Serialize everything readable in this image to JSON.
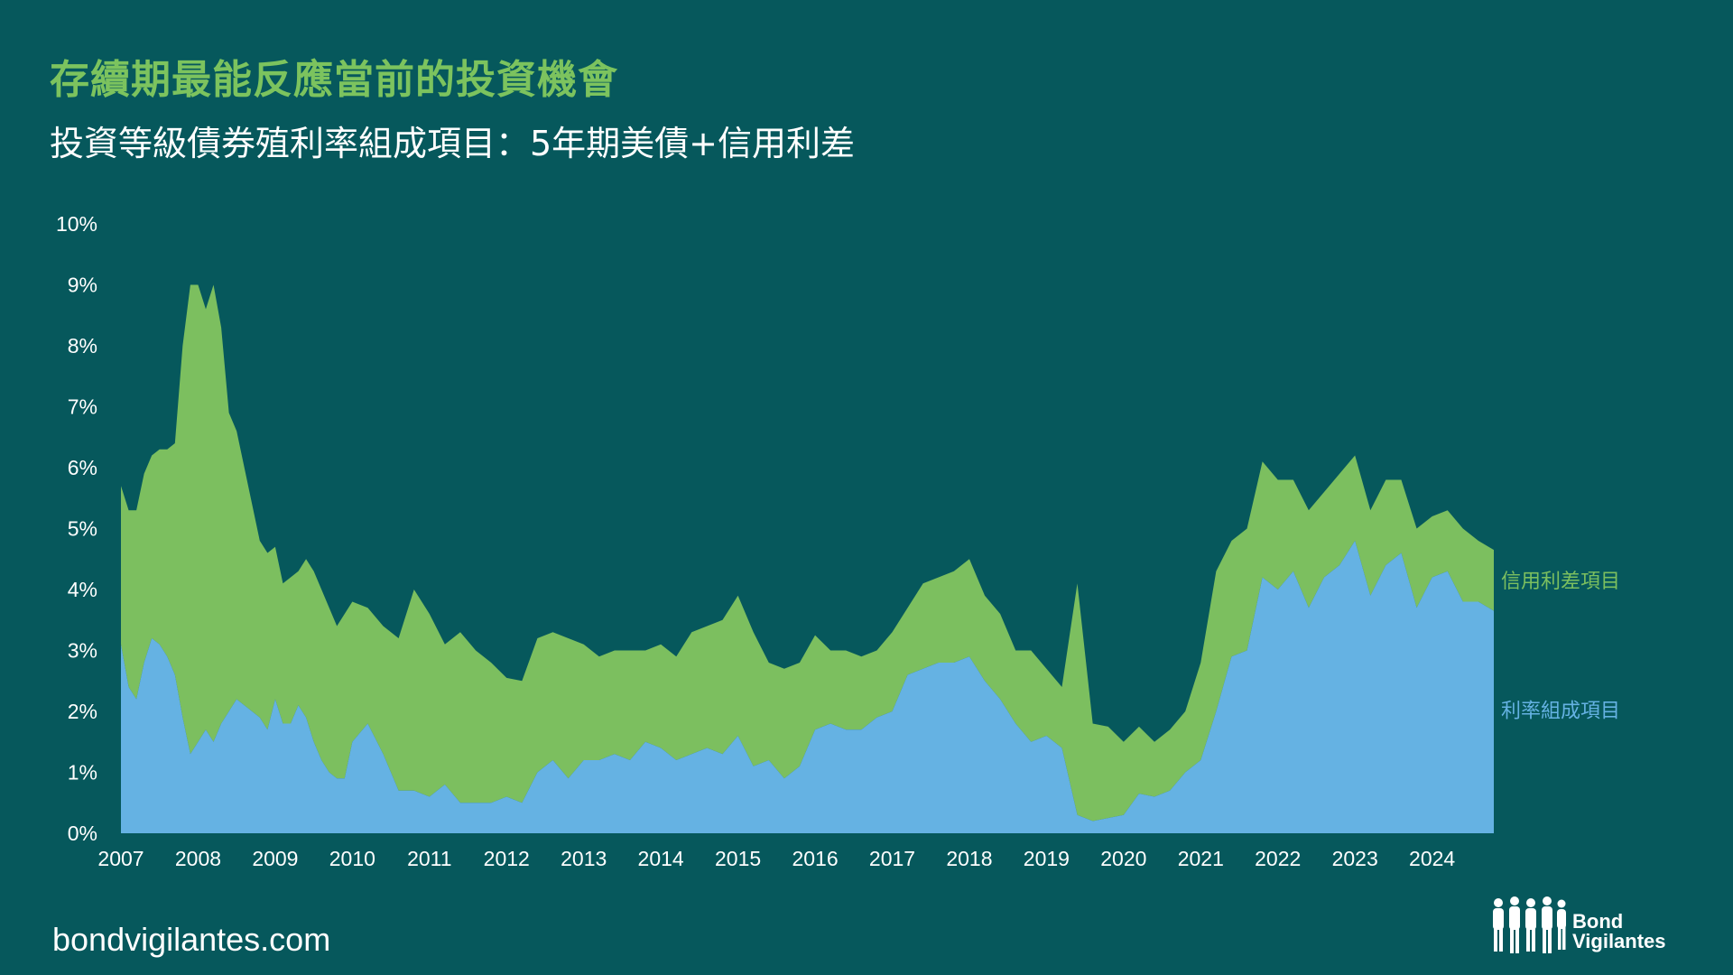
{
  "title": "存續期最能反應當前的投資機會",
  "subtitle": "投資等級債券殖利率組成項目：5年期美債+信用利差",
  "footer": "bondvigilantes.com",
  "logo": {
    "line1": "Bond",
    "line2": "Vigilantes"
  },
  "colors": {
    "background": "#06585c",
    "rate": "#65b2e3",
    "spread": "#7cbf5f",
    "title": "#7cc35e",
    "text": "#ffffff"
  },
  "chart_data": {
    "type": "area",
    "stacked": true,
    "xlabel": "",
    "ylabel": "",
    "ylim": [
      0,
      10
    ],
    "xlim": [
      2007,
      2024.8
    ],
    "y_ticks": [
      "0%",
      "1%",
      "2%",
      "3%",
      "4%",
      "5%",
      "6%",
      "7%",
      "8%",
      "9%",
      "10%"
    ],
    "x_ticks": [
      "2007",
      "2008",
      "2009",
      "2010",
      "2011",
      "2012",
      "2013",
      "2014",
      "2015",
      "2016",
      "2017",
      "2018",
      "2019",
      "2020",
      "2021",
      "2022",
      "2023",
      "2024"
    ],
    "grid": false,
    "series": [
      {
        "name": "利率組成項目",
        "color": "#65b2e3",
        "x": [
          2007.0,
          2007.1,
          2007.2,
          2007.3,
          2007.4,
          2007.5,
          2007.6,
          2007.7,
          2007.8,
          2007.9,
          2008.0,
          2008.1,
          2008.2,
          2008.3,
          2008.4,
          2008.5,
          2008.6,
          2008.7,
          2008.8,
          2008.9,
          2009.0,
          2009.1,
          2009.2,
          2009.3,
          2009.4,
          2009.5,
          2009.6,
          2009.7,
          2009.8,
          2009.9,
          2010.0,
          2010.2,
          2010.4,
          2010.6,
          2010.8,
          2011.0,
          2011.2,
          2011.4,
          2011.6,
          2011.8,
          2012.0,
          2012.2,
          2012.4,
          2012.6,
          2012.8,
          2013.0,
          2013.2,
          2013.4,
          2013.6,
          2013.8,
          2014.0,
          2014.2,
          2014.4,
          2014.6,
          2014.8,
          2015.0,
          2015.2,
          2015.4,
          2015.6,
          2015.8,
          2016.0,
          2016.2,
          2016.4,
          2016.6,
          2016.8,
          2017.0,
          2017.2,
          2017.4,
          2017.6,
          2017.8,
          2018.0,
          2018.2,
          2018.4,
          2018.6,
          2018.8,
          2019.0,
          2019.2,
          2019.4,
          2019.6,
          2019.8,
          2020.0,
          2020.2,
          2020.4,
          2020.6,
          2020.8,
          2021.0,
          2021.2,
          2021.4,
          2021.6,
          2021.8,
          2022.0,
          2022.2,
          2022.4,
          2022.6,
          2022.8,
          2023.0,
          2023.2,
          2023.4,
          2023.6,
          2023.8,
          2024.0,
          2024.2,
          2024.4,
          2024.6,
          2024.8
        ],
        "y": [
          3.1,
          2.4,
          2.2,
          2.8,
          3.2,
          3.1,
          2.9,
          2.6,
          1.9,
          1.3,
          1.5,
          1.7,
          1.5,
          1.8,
          2.0,
          2.2,
          2.1,
          2.0,
          1.9,
          1.7,
          2.2,
          1.8,
          1.8,
          2.1,
          1.9,
          1.5,
          1.2,
          1.0,
          0.9,
          0.9,
          1.5,
          1.8,
          1.3,
          0.7,
          0.7,
          0.6,
          0.8,
          0.5,
          0.5,
          0.5,
          0.6,
          0.5,
          1.0,
          1.2,
          0.9,
          1.2,
          1.2,
          1.3,
          1.2,
          1.5,
          1.4,
          1.2,
          1.3,
          1.4,
          1.3,
          1.6,
          1.1,
          1.2,
          0.9,
          1.1,
          1.7,
          1.8,
          1.7,
          1.7,
          1.9,
          2.0,
          2.6,
          2.7,
          2.8,
          2.8,
          2.9,
          2.5,
          2.2,
          1.8,
          1.5,
          1.6,
          1.4,
          0.3,
          0.2,
          0.25,
          0.3,
          0.65,
          0.6,
          0.7,
          1.0,
          1.2,
          2.0,
          2.9,
          3.0,
          4.2,
          4.0,
          4.3,
          3.7,
          4.2,
          4.4,
          4.8,
          3.9,
          4.4,
          4.6,
          3.7,
          4.2,
          4.3,
          3.8,
          3.8,
          3.65
        ]
      },
      {
        "name": "信用利差項目",
        "color": "#7cbf5f",
        "x": [
          2007.0,
          2007.1,
          2007.2,
          2007.3,
          2007.4,
          2007.5,
          2007.6,
          2007.7,
          2007.8,
          2007.9,
          2008.0,
          2008.1,
          2008.2,
          2008.3,
          2008.4,
          2008.5,
          2008.6,
          2008.7,
          2008.8,
          2008.9,
          2009.0,
          2009.1,
          2009.2,
          2009.3,
          2009.4,
          2009.5,
          2009.6,
          2009.7,
          2009.8,
          2009.9,
          2010.0,
          2010.2,
          2010.4,
          2010.6,
          2010.8,
          2011.0,
          2011.2,
          2011.4,
          2011.6,
          2011.8,
          2012.0,
          2012.2,
          2012.4,
          2012.6,
          2012.8,
          2013.0,
          2013.2,
          2013.4,
          2013.6,
          2013.8,
          2014.0,
          2014.2,
          2014.4,
          2014.6,
          2014.8,
          2015.0,
          2015.2,
          2015.4,
          2015.6,
          2015.8,
          2016.0,
          2016.2,
          2016.4,
          2016.6,
          2016.8,
          2017.0,
          2017.2,
          2017.4,
          2017.6,
          2017.8,
          2018.0,
          2018.2,
          2018.4,
          2018.6,
          2018.8,
          2019.0,
          2019.2,
          2019.4,
          2019.6,
          2019.8,
          2020.0,
          2020.2,
          2020.4,
          2020.6,
          2020.8,
          2021.0,
          2021.2,
          2021.4,
          2021.6,
          2021.8,
          2022.0,
          2022.2,
          2022.4,
          2022.6,
          2022.8,
          2023.0,
          2023.2,
          2023.4,
          2023.6,
          2023.8,
          2024.0,
          2024.2,
          2024.4,
          2024.6,
          2024.8
        ],
        "y": [
          2.6,
          2.9,
          3.1,
          3.1,
          3.0,
          3.2,
          3.4,
          3.8,
          6.1,
          7.7,
          7.5,
          6.9,
          7.5,
          6.5,
          4.9,
          4.4,
          3.9,
          3.4,
          2.9,
          2.9,
          2.5,
          2.3,
          2.4,
          2.2,
          2.6,
          2.8,
          2.8,
          2.7,
          2.5,
          2.7,
          2.3,
          1.9,
          2.1,
          2.5,
          3.3,
          3.0,
          2.3,
          2.8,
          2.5,
          2.3,
          1.95,
          2.0,
          2.2,
          2.1,
          2.3,
          1.9,
          1.7,
          1.7,
          1.8,
          1.5,
          1.7,
          1.7,
          2.0,
          2.0,
          2.2,
          2.3,
          2.2,
          1.6,
          1.8,
          1.7,
          1.55,
          1.2,
          1.3,
          1.2,
          1.1,
          1.3,
          1.1,
          1.4,
          1.4,
          1.5,
          1.6,
          1.4,
          1.4,
          1.2,
          1.5,
          1.1,
          1.0,
          3.8,
          1.6,
          1.5,
          1.2,
          1.1,
          0.9,
          1.0,
          1.0,
          1.6,
          2.3,
          1.9,
          2.0,
          1.9,
          1.8,
          1.5,
          1.6,
          1.4,
          1.5,
          1.4,
          1.4,
          1.4,
          1.2,
          1.3,
          1.0,
          1.0,
          1.2,
          1.0,
          1.0
        ]
      }
    ],
    "series_labels": [
      "信用利差項目",
      "利率組成項目"
    ]
  }
}
